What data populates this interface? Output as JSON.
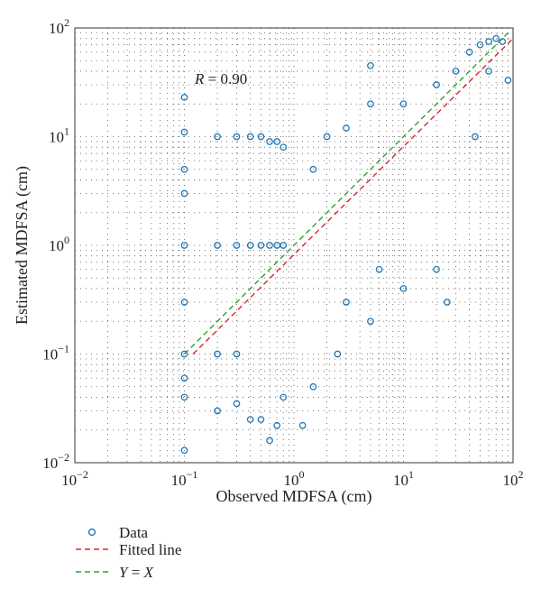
{
  "chart_data": {
    "type": "scatter",
    "xlabel": "Observed MDFSA (cm)",
    "ylabel": "Estimated MDFSA (cm)",
    "x_scale": "log",
    "y_scale": "log",
    "xlim": [
      0.01,
      100
    ],
    "ylim": [
      0.01,
      100
    ],
    "x_ticks": [
      {
        "base": "10",
        "exp": "−2"
      },
      {
        "base": "10",
        "exp": "−1"
      },
      {
        "base": "10",
        "exp": "0"
      },
      {
        "base": "10",
        "exp": "1"
      },
      {
        "base": "10",
        "exp": "2"
      }
    ],
    "y_ticks": [
      {
        "base": "10",
        "exp": "−2"
      },
      {
        "base": "10",
        "exp": "−1"
      },
      {
        "base": "10",
        "exp": "0"
      },
      {
        "base": "10",
        "exp": "1"
      },
      {
        "base": "10",
        "exp": "2"
      }
    ],
    "grid": true,
    "annotation": {
      "prefix": "R",
      "text": " = 0.90"
    },
    "legend_position": "bottom-left, below plot",
    "series": [
      {
        "name": "Data",
        "kind": "scatter",
        "marker": "open-circle",
        "color": "#1f77b4",
        "points": [
          [
            0.1,
            0.013
          ],
          [
            0.1,
            0.04
          ],
          [
            0.1,
            0.06
          ],
          [
            0.1,
            0.1
          ],
          [
            0.1,
            0.3
          ],
          [
            0.1,
            1.0
          ],
          [
            0.1,
            3.0
          ],
          [
            0.1,
            5.0
          ],
          [
            0.1,
            11.0
          ],
          [
            0.1,
            23.0
          ],
          [
            0.2,
            0.03
          ],
          [
            0.2,
            0.1
          ],
          [
            0.2,
            1.0
          ],
          [
            0.2,
            10.0
          ],
          [
            0.3,
            0.035
          ],
          [
            0.3,
            0.1
          ],
          [
            0.3,
            1.0
          ],
          [
            0.3,
            10.0
          ],
          [
            0.4,
            0.025
          ],
          [
            0.4,
            1.0
          ],
          [
            0.4,
            10.0
          ],
          [
            0.5,
            0.025
          ],
          [
            0.5,
            1.0
          ],
          [
            0.5,
            10.0
          ],
          [
            0.6,
            0.016
          ],
          [
            0.6,
            1.0
          ],
          [
            0.6,
            9.0
          ],
          [
            0.7,
            0.022
          ],
          [
            0.7,
            1.0
          ],
          [
            0.7,
            9.0
          ],
          [
            0.8,
            0.04
          ],
          [
            0.8,
            1.0
          ],
          [
            0.8,
            8.0
          ],
          [
            1.2,
            0.022
          ],
          [
            1.5,
            0.05
          ],
          [
            2.5,
            0.1
          ],
          [
            3.0,
            0.3
          ],
          [
            5.0,
            0.2
          ],
          [
            6.0,
            0.6
          ],
          [
            10.0,
            0.4
          ],
          [
            20.0,
            0.6
          ],
          [
            25.0,
            0.3
          ],
          [
            1.5,
            5.0
          ],
          [
            2.0,
            10.0
          ],
          [
            3.0,
            12.0
          ],
          [
            5.0,
            20.0
          ],
          [
            5.0,
            45.0
          ],
          [
            10.0,
            20.0
          ],
          [
            20.0,
            30.0
          ],
          [
            30.0,
            40.0
          ],
          [
            40.0,
            60.0
          ],
          [
            50.0,
            70.0
          ],
          [
            60.0,
            75.0
          ],
          [
            70.0,
            80.0
          ],
          [
            80.0,
            75.0
          ],
          [
            90.0,
            33.0
          ],
          [
            45.0,
            10.0
          ],
          [
            60.0,
            40.0
          ]
        ]
      },
      {
        "name": "Fitted line",
        "kind": "line",
        "dash": "dashed",
        "color": "#d62728",
        "x": [
          0.12,
          100
        ],
        "y": [
          0.1,
          80
        ]
      },
      {
        "name": "Y = X",
        "legend_prefix": "Y",
        "legend_mid": " = ",
        "legend_suffix": "X",
        "kind": "line",
        "dash": "dashed",
        "color": "#2ca02c",
        "x": [
          0.1,
          90
        ],
        "y": [
          0.1,
          90
        ]
      }
    ]
  }
}
